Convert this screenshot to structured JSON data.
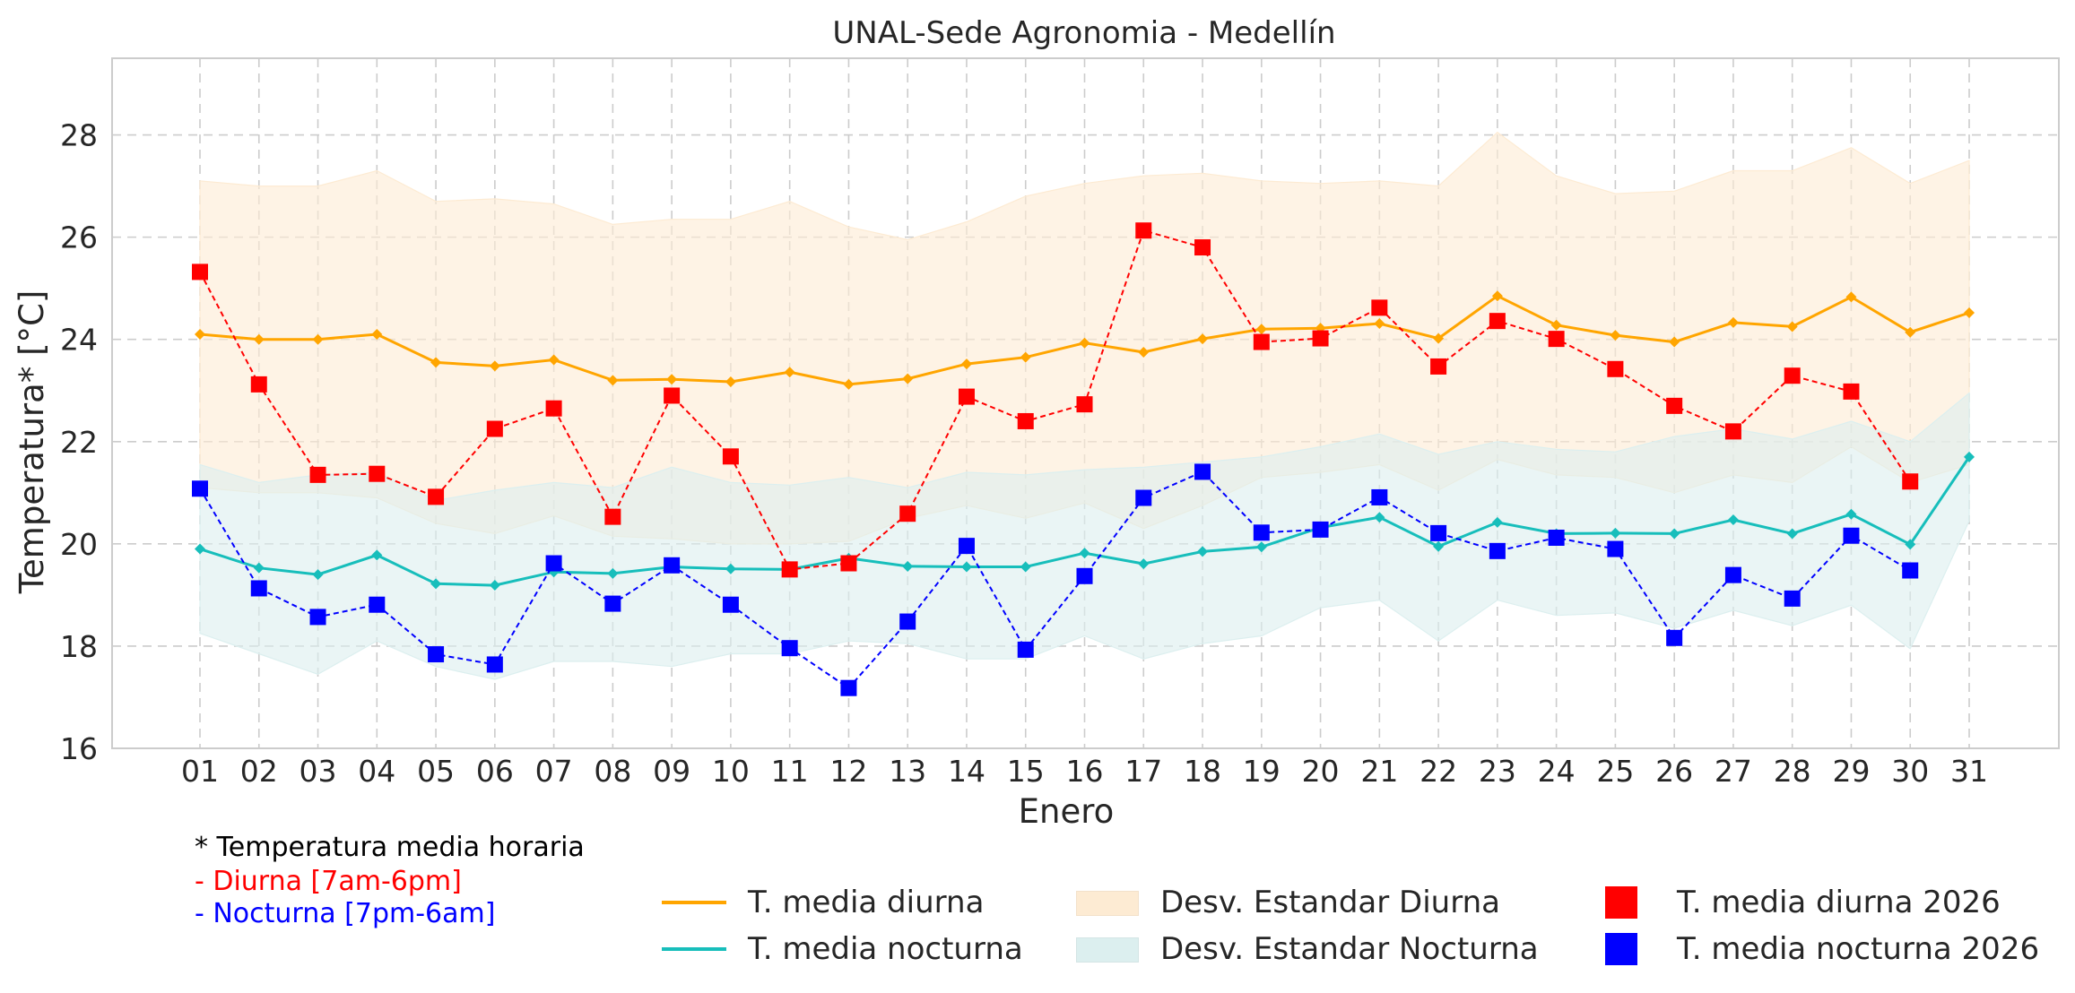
{
  "chart_data": {
    "type": "line",
    "title": "UNAL-Sede Agronomia - Medellín",
    "xlabel": "Enero",
    "ylabel": "Temperatura* [°C]",
    "ylim": [
      16,
      29.5
    ],
    "yticks": [
      16,
      18,
      20,
      22,
      24,
      26,
      28
    ],
    "grid": true,
    "categories": [
      "01",
      "02",
      "03",
      "04",
      "05",
      "06",
      "07",
      "08",
      "09",
      "10",
      "11",
      "12",
      "13",
      "14",
      "15",
      "16",
      "17",
      "18",
      "19",
      "20",
      "21",
      "22",
      "23",
      "24",
      "25",
      "26",
      "27",
      "28",
      "29",
      "30",
      "31"
    ],
    "series": [
      {
        "name": "T. media diurna",
        "kind": "line",
        "color": "#FFA500",
        "values": [
          24.1,
          24.0,
          24.0,
          24.1,
          23.55,
          23.48,
          23.6,
          23.2,
          23.22,
          23.17,
          23.36,
          23.12,
          23.23,
          23.52,
          23.65,
          23.93,
          23.75,
          24.01,
          24.2,
          24.22,
          24.31,
          24.02,
          24.85,
          24.28,
          24.08,
          23.95,
          24.33,
          24.25,
          24.83,
          24.14,
          24.52
        ]
      },
      {
        "name": "T. media nocturna",
        "kind": "line",
        "color": "#17BEBB",
        "values": [
          19.9,
          19.53,
          19.4,
          19.78,
          19.22,
          19.19,
          19.45,
          19.42,
          19.55,
          19.51,
          19.5,
          19.72,
          19.56,
          19.55,
          19.55,
          19.82,
          19.61,
          19.85,
          19.94,
          20.32,
          20.52,
          19.95,
          20.42,
          20.2,
          20.21,
          20.2,
          20.47,
          20.2,
          20.58,
          19.99,
          21.7
        ]
      },
      {
        "name": "Desv. Estandar Diurna",
        "kind": "band",
        "color": "#FDEBD3",
        "upper": [
          27.1,
          27.0,
          27.0,
          27.3,
          26.7,
          26.75,
          26.65,
          26.25,
          26.35,
          26.35,
          26.7,
          26.2,
          25.95,
          26.3,
          26.8,
          27.05,
          27.2,
          27.25,
          27.1,
          27.05,
          27.1,
          27.0,
          28.05,
          27.2,
          26.85,
          26.9,
          27.3,
          27.3,
          27.75,
          27.05,
          27.5
        ],
        "lower": [
          21.1,
          21.0,
          21.0,
          20.9,
          20.4,
          20.2,
          20.55,
          20.15,
          20.1,
          20.0,
          20.0,
          20.05,
          20.5,
          20.75,
          20.5,
          20.8,
          20.3,
          20.75,
          21.3,
          21.4,
          21.55,
          21.05,
          21.65,
          21.35,
          21.3,
          21.0,
          21.35,
          21.2,
          21.9,
          21.2,
          21.55
        ]
      },
      {
        "name": "Desv. Estandar Nocturna",
        "kind": "band",
        "color": "#DCEFEF",
        "upper": [
          21.55,
          21.2,
          21.35,
          21.4,
          20.85,
          21.05,
          21.2,
          21.1,
          21.5,
          21.2,
          21.15,
          21.3,
          21.1,
          21.4,
          21.35,
          21.45,
          21.5,
          21.6,
          21.7,
          21.9,
          22.15,
          21.75,
          22.0,
          21.85,
          21.8,
          22.1,
          22.25,
          22.05,
          22.4,
          22.0,
          22.95
        ],
        "lower": [
          18.25,
          17.85,
          17.45,
          18.1,
          17.6,
          17.35,
          17.7,
          17.7,
          17.6,
          17.85,
          17.85,
          18.1,
          18.05,
          17.75,
          17.75,
          18.2,
          17.75,
          18.05,
          18.2,
          18.75,
          18.9,
          18.1,
          18.9,
          18.6,
          18.65,
          18.35,
          18.7,
          18.4,
          18.8,
          17.95,
          20.45
        ]
      },
      {
        "name": "T. media diurna 2026",
        "kind": "dashed-markers",
        "color": "#FF0000",
        "values": [
          25.32,
          23.12,
          21.35,
          21.37,
          20.92,
          22.25,
          22.65,
          20.53,
          22.9,
          21.71,
          19.5,
          19.62,
          20.59,
          22.88,
          22.4,
          22.73,
          26.13,
          25.8,
          23.95,
          24.02,
          24.62,
          23.47,
          24.36,
          24.01,
          23.42,
          22.7,
          22.2,
          23.29,
          22.98,
          21.22,
          null
        ]
      },
      {
        "name": "T. media nocturna 2026",
        "kind": "dashed-markers",
        "color": "#0000FF",
        "values": [
          21.08,
          19.13,
          18.57,
          18.81,
          17.84,
          17.64,
          19.62,
          18.83,
          19.58,
          18.81,
          17.96,
          17.18,
          18.48,
          19.96,
          17.93,
          19.37,
          20.9,
          21.41,
          20.22,
          20.28,
          20.91,
          20.21,
          19.86,
          20.12,
          19.9,
          18.16,
          19.39,
          18.93,
          20.16,
          19.48,
          null
        ]
      }
    ]
  },
  "footnote": {
    "line1": "* Temperatura media horaria",
    "line2": "- Diurna [7am-6pm]",
    "line3": "- Nocturna [7pm-6am]"
  },
  "legend": {
    "items": [
      {
        "label": "T. media diurna",
        "kind": "line",
        "color": "#FFA500"
      },
      {
        "label": "T. media nocturna",
        "kind": "line",
        "color": "#17BEBB"
      },
      {
        "label": "Desv. Estandar Diurna",
        "kind": "patch",
        "color": "#FDEBD3"
      },
      {
        "label": "Desv. Estandar Nocturna",
        "kind": "patch",
        "color": "#DCEFEF"
      },
      {
        "label": "T. media diurna 2026",
        "kind": "square",
        "color": "#FF0000"
      },
      {
        "label": "T. media nocturna 2026",
        "kind": "square",
        "color": "#0000FF"
      }
    ]
  }
}
